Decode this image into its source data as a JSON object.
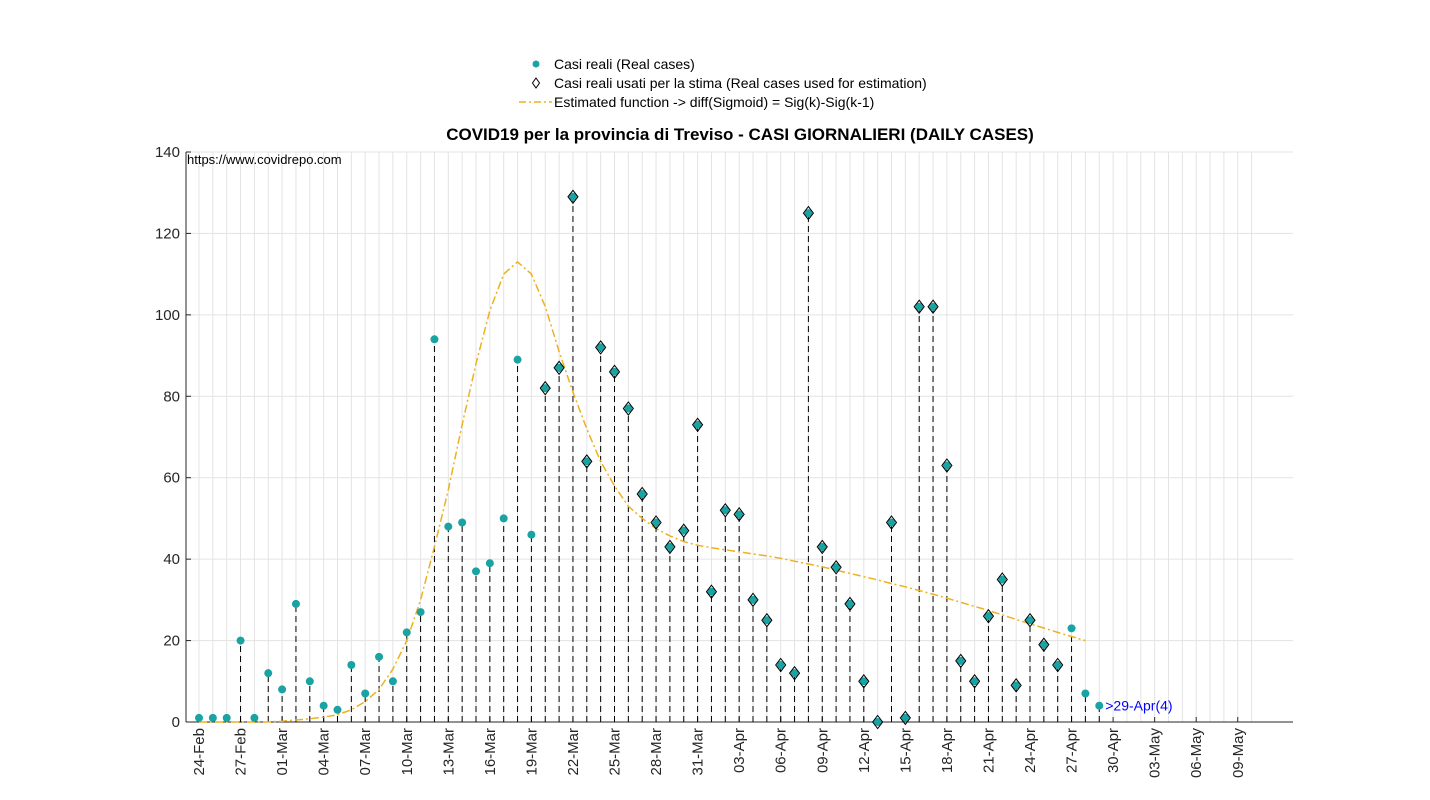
{
  "chart_data": {
    "type": "scatter",
    "title": "COVID19 per la provincia di Treviso - CASI GIORNALIERI (DAILY CASES)",
    "annotation": "https://www.covidrepo.com",
    "xlabel": "",
    "ylabel": "",
    "ylim": [
      0,
      140
    ],
    "yticks": [
      0,
      20,
      40,
      60,
      80,
      100,
      120,
      140
    ],
    "grid": true,
    "legend_placement": "top-center",
    "colors": {
      "real": "#1aa3a3",
      "fit": "#edb120",
      "stem": "#000000",
      "axis": "#262626",
      "label": "#0000ff"
    },
    "x_start": "24-Feb",
    "x_end": "10-May",
    "x_tick_labels": [
      "24-Feb",
      "27-Feb",
      "01-Mar",
      "04-Mar",
      "07-Mar",
      "10-Mar",
      "13-Mar",
      "16-Mar",
      "19-Mar",
      "22-Mar",
      "25-Mar",
      "28-Mar",
      "31-Mar",
      "03-Apr",
      "06-Apr",
      "09-Apr",
      "12-Apr",
      "15-Apr",
      "18-Apr",
      "21-Apr",
      "24-Apr",
      "27-Apr",
      "30-Apr",
      "03-May",
      "06-May",
      "09-May"
    ],
    "series": [
      {
        "name": "Casi reali (Real cases)",
        "marker": "circle",
        "values": [
          1,
          1,
          1,
          20,
          1,
          12,
          8,
          29,
          10,
          4,
          3,
          14,
          7,
          16,
          10,
          22,
          27,
          94,
          48,
          49,
          37,
          39,
          50,
          89,
          46,
          82,
          87,
          129,
          64,
          92,
          86,
          77,
          56,
          49,
          43,
          47,
          73,
          32,
          52,
          51,
          30,
          25,
          14,
          12,
          125,
          43,
          38,
          29,
          10,
          0,
          49,
          1,
          102,
          102,
          63,
          15,
          10,
          26,
          35,
          9,
          25,
          19,
          14,
          23,
          7,
          4
        ]
      },
      {
        "name": "Casi reali usati per la stima (Real cases used for estimation)",
        "marker": "diamond",
        "start_index": 25,
        "values": [
          82,
          87,
          129,
          64,
          92,
          86,
          77,
          56,
          49,
          43,
          47,
          73,
          32,
          52,
          51,
          30,
          25,
          14,
          12,
          125,
          43,
          38,
          29,
          10,
          0,
          49,
          1,
          102,
          102,
          63,
          15,
          10,
          26,
          35,
          9,
          25,
          19,
          14
        ]
      },
      {
        "name": "Estimated function -> diff(Sigmoid) = Sig(k)-Sig(k-1)",
        "style": "dash-dot",
        "values": [
          0,
          0,
          0,
          0,
          0,
          0,
          0.2,
          0.5,
          0.8,
          1.2,
          1.8,
          3,
          5,
          8,
          13,
          20,
          30,
          43,
          57,
          73,
          88,
          101,
          110,
          113,
          110,
          102,
          91,
          81,
          72,
          64,
          58,
          53,
          50,
          47.5,
          45.7,
          44.3,
          43.4,
          42.8,
          42.3,
          41.8,
          41.3,
          40.8,
          40.2,
          39.5,
          38.8,
          38.1,
          37.3,
          36.5,
          35.7,
          34.9,
          34,
          33.2,
          32.3,
          31.4,
          30.4,
          29.4,
          28.4,
          27.4,
          26.3,
          25.2,
          24.1,
          23.1,
          22,
          21,
          20
        ]
      }
    ],
    "last_point_label": ">29-Apr(4)"
  }
}
